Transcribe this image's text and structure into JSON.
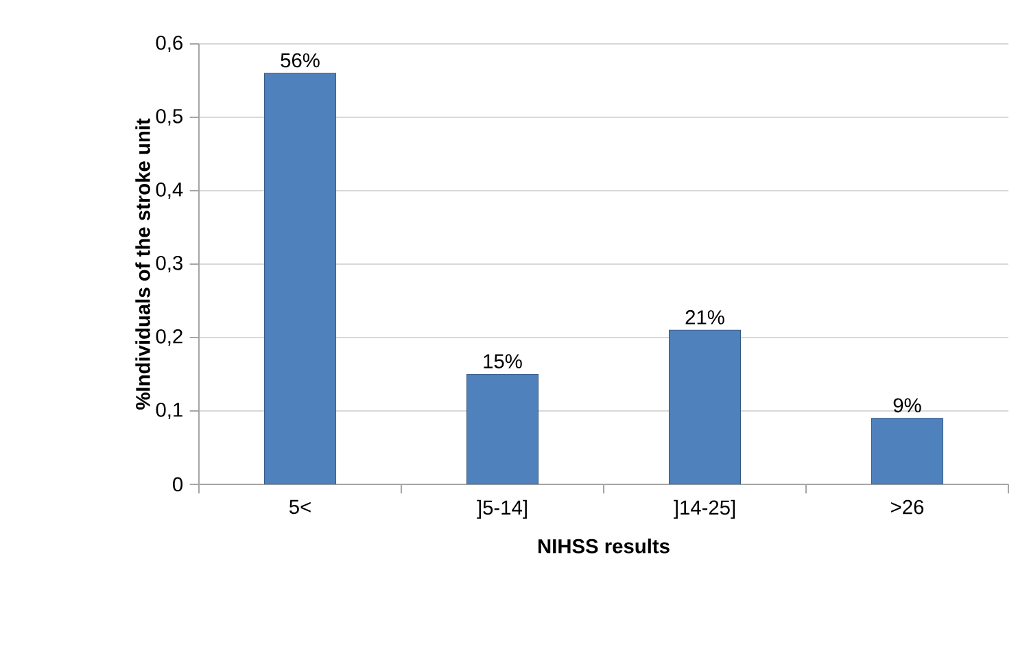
{
  "chart_data": {
    "type": "bar",
    "xlabel": "NIHSS results",
    "ylabel": "%Individuals of the stroke unit",
    "categories": [
      "5<",
      "]5-14]",
      "]14-25]",
      ">26"
    ],
    "values": [
      0.56,
      0.15,
      0.21,
      0.09
    ],
    "value_labels": [
      "56%",
      "15%",
      "21%",
      "9%"
    ],
    "color": "#4f81bd",
    "ylim": [
      0,
      0.6
    ],
    "yticks": [
      0,
      {
        "value": 0.1,
        "label": "0,1"
      },
      {
        "value": 0.2,
        "label": "0,2"
      },
      {
        "value": 0.3,
        "label": "0,3"
      },
      {
        "value": 0.4,
        "label": "0,4"
      },
      {
        "value": 0.5,
        "label": "0,5"
      },
      {
        "value": 0.6,
        "label": "0,6"
      }
    ],
    "grid": "y"
  }
}
